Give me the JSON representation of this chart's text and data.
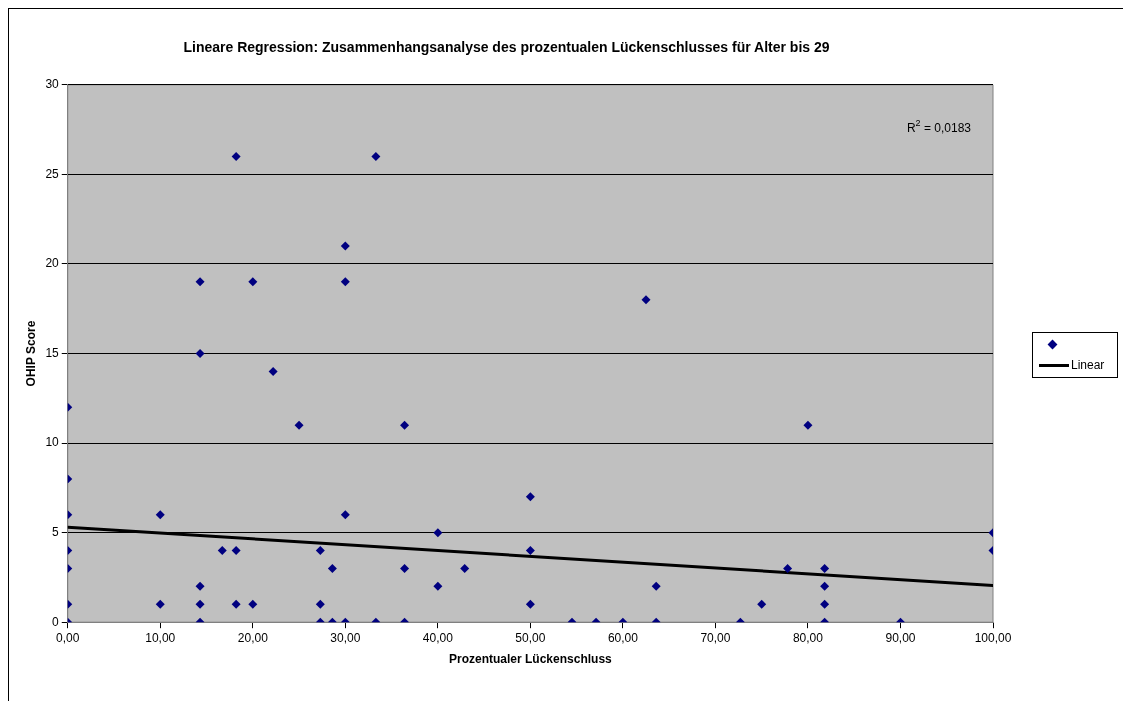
{
  "chart_data": {
    "type": "scatter",
    "title": "Lineare Regression: Zusammenhangsanalyse des prozentualen Lückenschlusses für Alter bis 29",
    "xlabel": "Prozentualer Lückenschluss",
    "ylabel": "OHIP Score",
    "x": [
      0,
      0,
      0,
      0,
      0,
      0,
      0,
      10,
      10,
      14.3,
      14.3,
      14.3,
      14.3,
      14.3,
      16.7,
      18.2,
      18.2,
      18.2,
      20,
      20,
      22.2,
      25,
      27.3,
      27.3,
      27.3,
      28.6,
      28.6,
      30,
      30,
      30,
      30,
      33.3,
      33.3,
      36.4,
      36.4,
      36.4,
      40,
      40,
      42.9,
      50,
      50,
      50,
      54.5,
      57.1,
      60,
      62.5,
      63.6,
      63.6,
      72.7,
      75,
      77.8,
      80,
      81.8,
      81.8,
      81.8,
      81.8,
      90,
      100,
      100
    ],
    "series": [
      {
        "color": "#000080",
        "marker": "diamond",
        "values": [
          12,
          8,
          6,
          4,
          3,
          1,
          0,
          6,
          1,
          19,
          15,
          2,
          1,
          0,
          4,
          26,
          4,
          1,
          19,
          1,
          14,
          11,
          4,
          1,
          0,
          3,
          0,
          21,
          19,
          6,
          0,
          26,
          0,
          11,
          3,
          0,
          5,
          2,
          3,
          7,
          4,
          1,
          0,
          0,
          0,
          18,
          2,
          0,
          0,
          1,
          3,
          11,
          3,
          2,
          1,
          0,
          0,
          5,
          4
        ]
      },
      {
        "name": "Linear",
        "type": "line",
        "color": "#000000",
        "x": [
          0,
          100
        ],
        "values": [
          5.3,
          2.05
        ]
      }
    ],
    "xlim": [
      0,
      100
    ],
    "xticks": [
      {
        "value": 0,
        "label": "0,00"
      },
      {
        "value": 10,
        "label": "10,00"
      },
      {
        "value": 20,
        "label": "20,00"
      },
      {
        "value": 30,
        "label": "30,00"
      },
      {
        "value": 40,
        "label": "40,00"
      },
      {
        "value": 50,
        "label": "50,00"
      },
      {
        "value": 60,
        "label": "60,00"
      },
      {
        "value": 70,
        "label": "70,00"
      },
      {
        "value": 80,
        "label": "80,00"
      },
      {
        "value": 90,
        "label": "90,00"
      },
      {
        "value": 100,
        "label": "100,00"
      }
    ],
    "ylim": [
      0,
      30
    ],
    "yticks": [
      0,
      5,
      10,
      15,
      20,
      25,
      30
    ],
    "grid": "y",
    "legend": "right",
    "annotations": [
      "R$^{2}$ = 0,0183"
    ]
  }
}
